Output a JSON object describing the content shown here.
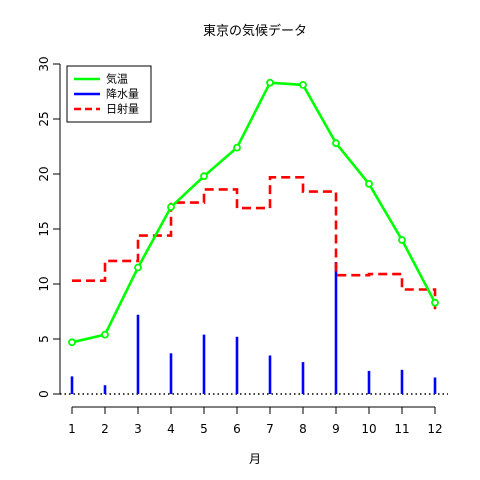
{
  "chart_data": {
    "type": "line",
    "title": "東京の気候データ",
    "xlabel": "月",
    "ylabel": "",
    "x": [
      1,
      2,
      3,
      4,
      5,
      6,
      7,
      8,
      9,
      10,
      11,
      12
    ],
    "xlim": [
      1,
      12
    ],
    "ylim": [
      0,
      30
    ],
    "x_ticks": [
      "1",
      "2",
      "3",
      "4",
      "5",
      "6",
      "7",
      "8",
      "9",
      "10",
      "11",
      "12"
    ],
    "y_ticks": [
      "0",
      "5",
      "10",
      "15",
      "20",
      "25",
      "30"
    ],
    "grid": false,
    "legend_position": "top-left",
    "baseline": {
      "y": 0,
      "style": "dotted",
      "color": "#000000"
    },
    "series": [
      {
        "name": "気温",
        "type": "line",
        "marker": "circle",
        "color": "#00ff00",
        "values": [
          4.7,
          5.4,
          11.5,
          17.0,
          19.8,
          22.4,
          28.3,
          28.1,
          22.8,
          19.1,
          14.0,
          8.3
        ]
      },
      {
        "name": "降水量",
        "type": "bar",
        "color": "#0000ff",
        "values": [
          1.6,
          0.8,
          7.2,
          3.7,
          5.4,
          5.2,
          3.5,
          2.9,
          12.0,
          2.1,
          2.2,
          1.5
        ]
      },
      {
        "name": "日射量",
        "type": "step",
        "style": "dashed",
        "color": "#ff0000",
        "values": [
          10.3,
          12.1,
          14.4,
          17.4,
          18.6,
          16.9,
          19.7,
          18.4,
          10.8,
          10.9,
          9.5,
          7.7
        ]
      }
    ]
  }
}
